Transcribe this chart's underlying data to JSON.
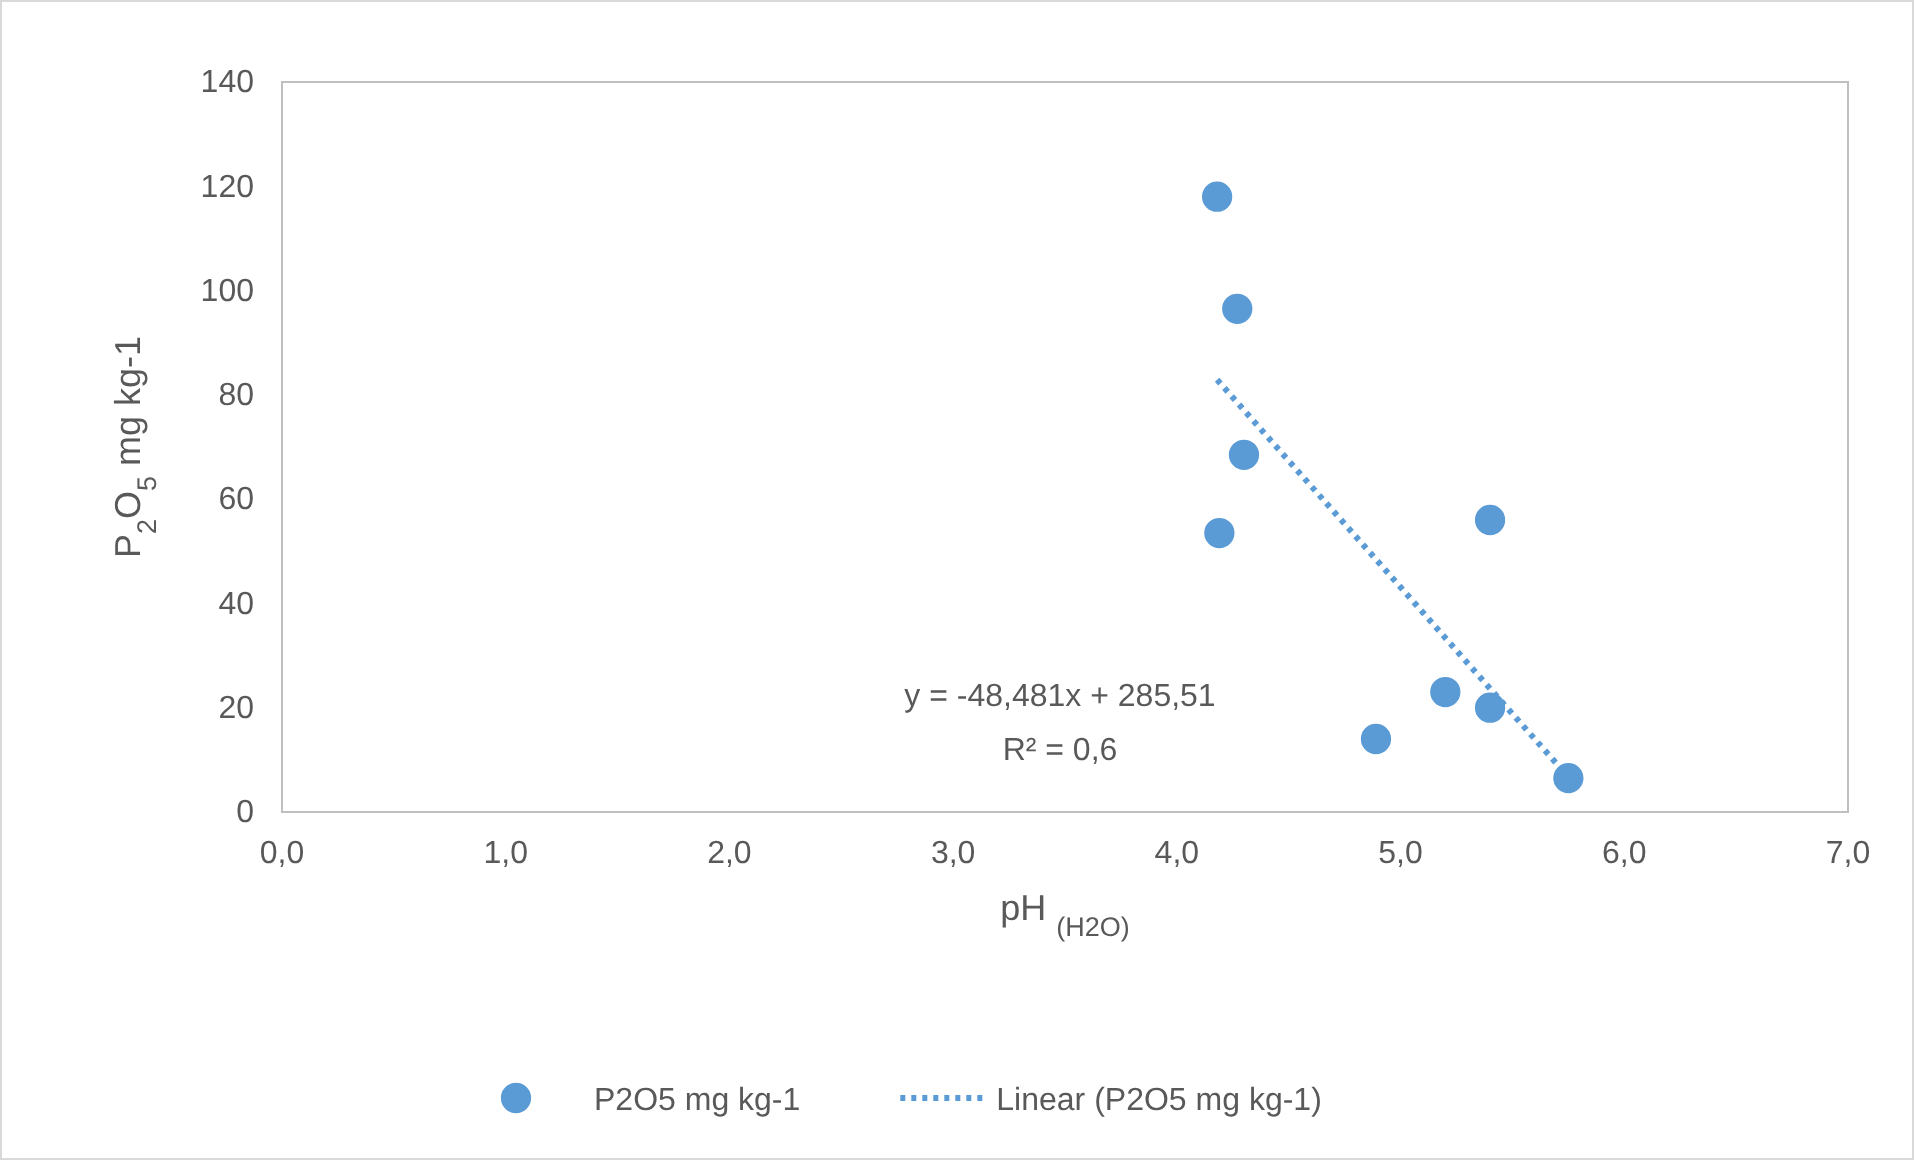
{
  "chart_data": {
    "type": "scatter",
    "xlabel": "pH $_{(H2O)}$",
    "ylabel": "P$_{2}$O$_{5}$ mg kg-1",
    "xlim": [
      0,
      7
    ],
    "ylim": [
      0,
      140
    ],
    "xticks": [
      {
        "value": 0,
        "label": "0,0"
      },
      {
        "value": 1,
        "label": "1,0"
      },
      {
        "value": 2,
        "label": "2,0"
      },
      {
        "value": 3,
        "label": "3,0"
      },
      {
        "value": 4,
        "label": "4,0"
      },
      {
        "value": 5,
        "label": "5,0"
      },
      {
        "value": 6,
        "label": "6,0"
      },
      {
        "value": 7,
        "label": "7,0"
      }
    ],
    "yticks": [
      0,
      20,
      40,
      60,
      80,
      100,
      120,
      140
    ],
    "grid": false,
    "legend": "bottom",
    "marker": "circle",
    "series": [
      {
        "name": "P2O5 mg kg-1",
        "type": "scatter",
        "color": "#5b9bd5",
        "x": [
          4.18,
          4.27,
          4.3,
          4.19,
          5.4,
          5.2,
          5.4,
          4.89,
          5.75
        ],
        "values": [
          118,
          96.5,
          68.5,
          53.5,
          56,
          23,
          20,
          14,
          6.5
        ]
      },
      {
        "name": "Linear (P2O5 mg kg-1)",
        "type": "line",
        "line_style": "dotted",
        "marker": "none",
        "color": "#5b9bd5",
        "x": [
          4.18,
          5.75
        ],
        "values": [
          82.9,
          6.7
        ]
      }
    ],
    "annotations": [
      "y = -48,481x + 285,51",
      "R² = 0,6"
    ]
  }
}
